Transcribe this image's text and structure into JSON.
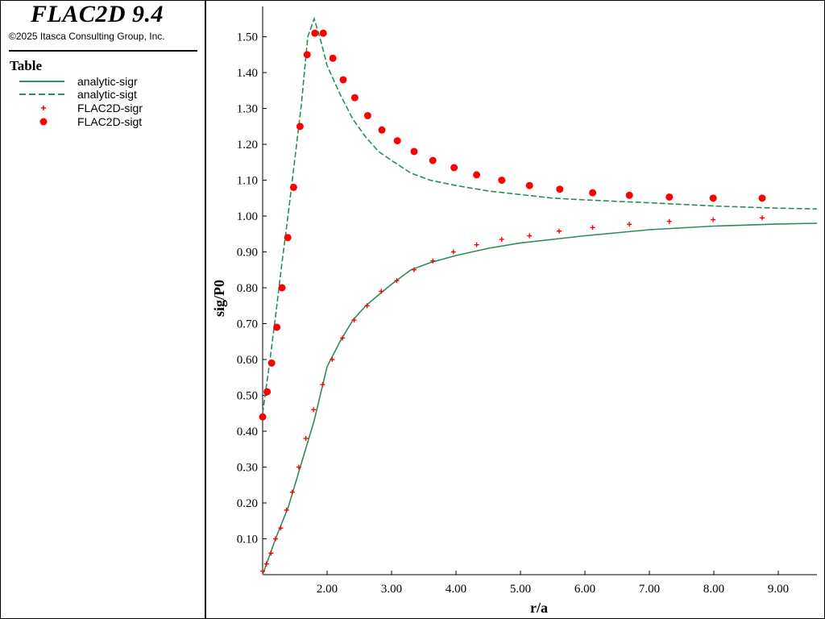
{
  "app": {
    "title": "FLAC2D 9.4",
    "copyright": "©2025 Itasca Consulting Group, Inc."
  },
  "legend": {
    "heading": "Table",
    "items": [
      {
        "label": "analytic-sigr",
        "symbol": "solid-line",
        "color": "#2e8b57"
      },
      {
        "label": "analytic-sigt",
        "symbol": "dashed-line",
        "color": "#2e8b57"
      },
      {
        "label": "FLAC2D-sigr",
        "symbol": "plus-marker",
        "color": "#ff0000"
      },
      {
        "label": "FLAC2D-sigt",
        "symbol": "dot-marker",
        "color": "#ff0000"
      }
    ]
  },
  "chart_data": {
    "type": "line",
    "xlabel": "r/a",
    "ylabel": "sig/P0",
    "xlim": [
      1.0,
      9.6
    ],
    "ylim": [
      0.0,
      1.58
    ],
    "xticks": [
      2.0,
      3.0,
      4.0,
      5.0,
      6.0,
      7.0,
      8.0,
      9.0
    ],
    "xtick_labels": [
      "2.00",
      "3.00",
      "4.00",
      "5.00",
      "6.00",
      "7.00",
      "8.00",
      "9.00"
    ],
    "yticks": [
      0.1,
      0.2,
      0.3,
      0.4,
      0.5,
      0.6,
      0.7,
      0.8,
      0.9,
      1.0,
      1.1,
      1.2,
      1.3,
      1.4,
      1.5
    ],
    "ytick_labels": [
      "0.10",
      "0.20",
      "0.30",
      "0.40",
      "0.50",
      "0.60",
      "0.70",
      "0.80",
      "0.90",
      "1.00",
      "1.10",
      "1.20",
      "1.30",
      "1.40",
      "1.50"
    ],
    "grid": false,
    "series": [
      {
        "name": "analytic-sigr",
        "style": "solid-line",
        "color": "#2e8b57",
        "x": [
          1.0,
          1.2,
          1.4,
          1.6,
          1.8,
          2.0,
          2.2,
          2.4,
          2.6,
          2.8,
          3.0,
          3.3,
          3.6,
          4.0,
          4.5,
          5.0,
          5.5,
          6.0,
          7.0,
          8.0,
          9.0,
          9.6
        ],
        "y": [
          0.0,
          0.1,
          0.19,
          0.31,
          0.43,
          0.58,
          0.65,
          0.71,
          0.75,
          0.78,
          0.81,
          0.85,
          0.87,
          0.89,
          0.91,
          0.925,
          0.935,
          0.945,
          0.962,
          0.972,
          0.978,
          0.98
        ]
      },
      {
        "name": "analytic-sigt",
        "style": "dashed-line",
        "color": "#2e8b57",
        "x": [
          1.0,
          1.1,
          1.2,
          1.3,
          1.4,
          1.5,
          1.6,
          1.7,
          1.8,
          1.9,
          2.0,
          2.2,
          2.4,
          2.6,
          2.8,
          3.0,
          3.3,
          3.6,
          4.0,
          4.5,
          5.0,
          5.5,
          6.0,
          7.0,
          8.0,
          9.0,
          9.6
        ],
        "y": [
          0.45,
          0.58,
          0.72,
          0.87,
          1.01,
          1.16,
          1.31,
          1.5,
          1.55,
          1.49,
          1.42,
          1.34,
          1.27,
          1.22,
          1.18,
          1.155,
          1.12,
          1.1,
          1.085,
          1.07,
          1.06,
          1.05,
          1.045,
          1.037,
          1.028,
          1.022,
          1.02
        ]
      },
      {
        "name": "FLAC2D-sigr",
        "style": "plus-marker",
        "color": "#ff0000",
        "x": [
          1.0,
          1.06,
          1.13,
          1.2,
          1.28,
          1.37,
          1.46,
          1.56,
          1.67,
          1.79,
          1.93,
          2.08,
          2.24,
          2.42,
          2.62,
          2.84,
          3.08,
          3.35,
          3.64,
          3.96,
          4.32,
          4.71,
          5.14,
          5.6,
          6.12,
          6.69,
          7.31,
          7.99,
          8.75
        ],
        "y": [
          0.01,
          0.03,
          0.06,
          0.1,
          0.13,
          0.18,
          0.23,
          0.3,
          0.38,
          0.46,
          0.53,
          0.6,
          0.66,
          0.71,
          0.75,
          0.79,
          0.82,
          0.85,
          0.875,
          0.9,
          0.92,
          0.935,
          0.945,
          0.958,
          0.968,
          0.977,
          0.985,
          0.99,
          0.995
        ]
      },
      {
        "name": "FLAC2D-sigt",
        "style": "dot-marker",
        "color": "#ff0000",
        "x": [
          1.0,
          1.07,
          1.14,
          1.22,
          1.3,
          1.39,
          1.48,
          1.58,
          1.69,
          1.81,
          1.94,
          2.09,
          2.25,
          2.43,
          2.63,
          2.85,
          3.09,
          3.35,
          3.64,
          3.97,
          4.32,
          4.71,
          5.14,
          5.61,
          6.12,
          6.69,
          7.31,
          7.99,
          8.75
        ],
        "y": [
          0.44,
          0.51,
          0.59,
          0.69,
          0.8,
          0.94,
          1.08,
          1.25,
          1.45,
          1.51,
          1.51,
          1.44,
          1.38,
          1.33,
          1.28,
          1.24,
          1.21,
          1.18,
          1.155,
          1.135,
          1.115,
          1.1,
          1.085,
          1.075,
          1.065,
          1.058,
          1.053,
          1.05,
          1.05
        ]
      }
    ]
  }
}
